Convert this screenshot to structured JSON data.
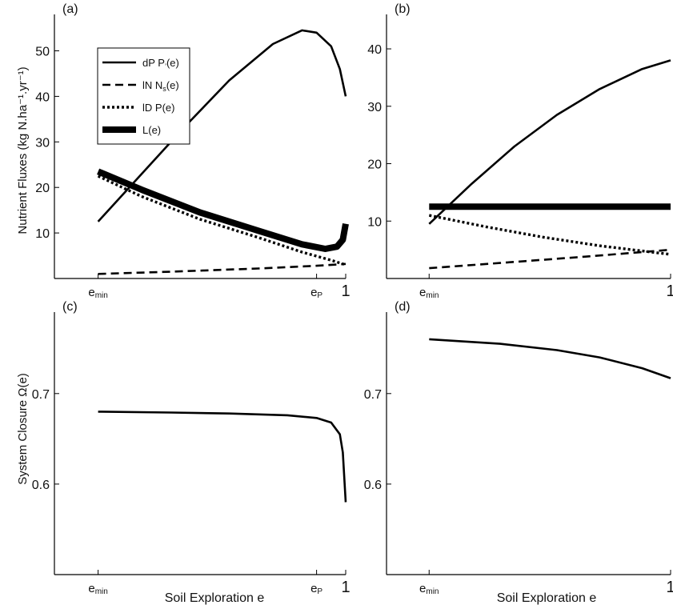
{
  "figure": {
    "ylabel_top": "Nutrient Fluxes (kg N.ha⁻¹.yr⁻¹)",
    "ylabel_bottom": "System Closure Ω(e)",
    "xlabel": "Soil Exploration e"
  },
  "chart_data": [
    {
      "type": "line",
      "panel_label": "(a)",
      "ylim": [
        0,
        58
      ],
      "yticks": [
        10,
        20,
        30,
        40,
        50
      ],
      "xticks": [
        {
          "x": 0.15,
          "label": "e",
          "sub": "min"
        },
        {
          "x": 0.9,
          "label": "e",
          "sub": "P"
        },
        {
          "x": 1.0,
          "label": "1",
          "sub": ""
        }
      ],
      "xlim": [
        0,
        1
      ],
      "legend": {
        "placement": "top-left",
        "entries": [
          {
            "label": "dP P",
            "sub": "’",
            "tail": "(e)",
            "style": "solid"
          },
          {
            "label": "lN N",
            "sub": "s",
            "tail": "(e)",
            "style": "dashed"
          },
          {
            "label": "lD P",
            "sub": "",
            "tail": "(e)",
            "style": "dotted"
          },
          {
            "label": "L",
            "sub": "",
            "tail": "(e)",
            "style": "thick"
          }
        ]
      },
      "series": [
        {
          "style": "solid",
          "points": [
            [
              0.15,
              12.5
            ],
            [
              0.3,
              23
            ],
            [
              0.45,
              33.5
            ],
            [
              0.6,
              43.5
            ],
            [
              0.75,
              51.5
            ],
            [
              0.85,
              54.5
            ],
            [
              0.9,
              54
            ],
            [
              0.95,
              51
            ],
            [
              0.98,
              46
            ],
            [
              1.0,
              40
            ]
          ]
        },
        {
          "style": "dashed",
          "points": [
            [
              0.15,
              1
            ],
            [
              0.4,
              1.5
            ],
            [
              0.7,
              2.2
            ],
            [
              0.9,
              2.8
            ],
            [
              1.0,
              3.2
            ]
          ]
        },
        {
          "style": "dotted",
          "points": [
            [
              0.15,
              22.5
            ],
            [
              0.3,
              18
            ],
            [
              0.5,
              13
            ],
            [
              0.7,
              9
            ],
            [
              0.85,
              5.8
            ],
            [
              0.95,
              4
            ],
            [
              1.0,
              3
            ]
          ]
        },
        {
          "style": "thick",
          "points": [
            [
              0.15,
              23.5
            ],
            [
              0.3,
              19.5
            ],
            [
              0.5,
              14.5
            ],
            [
              0.7,
              10.5
            ],
            [
              0.85,
              7.5
            ],
            [
              0.93,
              6.5
            ],
            [
              0.97,
              7
            ],
            [
              0.99,
              8.5
            ],
            [
              1.0,
              12
            ]
          ]
        }
      ]
    },
    {
      "type": "line",
      "panel_label": "(b)",
      "ylim": [
        0,
        46
      ],
      "yticks": [
        10,
        20,
        30,
        40
      ],
      "xticks": [
        {
          "x": 0.15,
          "label": "e",
          "sub": "min"
        },
        {
          "x": 1.0,
          "label": "1",
          "sub": ""
        }
      ],
      "xlim": [
        0,
        1
      ],
      "series": [
        {
          "style": "solid",
          "points": [
            [
              0.15,
              9.5
            ],
            [
              0.3,
              16.5
            ],
            [
              0.45,
              23
            ],
            [
              0.6,
              28.5
            ],
            [
              0.75,
              33
            ],
            [
              0.9,
              36.5
            ],
            [
              1.0,
              38
            ]
          ]
        },
        {
          "style": "dashed",
          "points": [
            [
              0.15,
              1.8
            ],
            [
              0.4,
              2.7
            ],
            [
              0.7,
              3.8
            ],
            [
              0.9,
              4.6
            ],
            [
              1.0,
              5
            ]
          ]
        },
        {
          "style": "dotted",
          "points": [
            [
              0.15,
              11
            ],
            [
              0.35,
              9
            ],
            [
              0.55,
              7.2
            ],
            [
              0.75,
              5.7
            ],
            [
              0.9,
              4.8
            ],
            [
              1.0,
              4.2
            ]
          ]
        },
        {
          "style": "thick",
          "points": [
            [
              0.15,
              12.5
            ],
            [
              1.0,
              12.5
            ]
          ]
        }
      ]
    },
    {
      "type": "line",
      "panel_label": "(c)",
      "ylim": [
        0.5,
        0.79
      ],
      "yticks": [
        0.6,
        0.7
      ],
      "xticks": [
        {
          "x": 0.15,
          "label": "e",
          "sub": "min"
        },
        {
          "x": 0.9,
          "label": "e",
          "sub": "P"
        },
        {
          "x": 1.0,
          "label": "1",
          "sub": ""
        }
      ],
      "xlim": [
        0,
        1
      ],
      "series": [
        {
          "style": "solid",
          "points": [
            [
              0.15,
              0.68
            ],
            [
              0.4,
              0.679
            ],
            [
              0.6,
              0.678
            ],
            [
              0.8,
              0.676
            ],
            [
              0.9,
              0.673
            ],
            [
              0.95,
              0.668
            ],
            [
              0.98,
              0.655
            ],
            [
              0.99,
              0.635
            ],
            [
              1.0,
              0.58
            ]
          ]
        }
      ]
    },
    {
      "type": "line",
      "panel_label": "(d)",
      "ylim": [
        0.5,
        0.79
      ],
      "yticks": [
        0.6,
        0.7
      ],
      "xticks": [
        {
          "x": 0.15,
          "label": "e",
          "sub": "min"
        },
        {
          "x": 1.0,
          "label": "1",
          "sub": ""
        }
      ],
      "xlim": [
        0,
        1
      ],
      "series": [
        {
          "style": "solid",
          "points": [
            [
              0.15,
              0.76
            ],
            [
              0.4,
              0.755
            ],
            [
              0.6,
              0.748
            ],
            [
              0.75,
              0.74
            ],
            [
              0.9,
              0.728
            ],
            [
              1.0,
              0.717
            ]
          ]
        }
      ]
    }
  ]
}
